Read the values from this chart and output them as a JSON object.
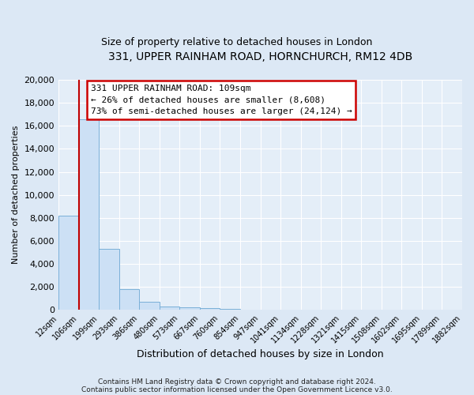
{
  "title1": "331, UPPER RAINHAM ROAD, HORNCHURCH, RM12 4DB",
  "title2": "Size of property relative to detached houses in London",
  "xlabel": "Distribution of detached houses by size in London",
  "ylabel": "Number of detached properties",
  "bar_values": [
    8200,
    16600,
    5300,
    1800,
    700,
    300,
    200,
    150,
    100,
    0,
    0,
    0,
    0,
    0,
    0,
    0,
    0,
    0,
    0,
    0
  ],
  "bin_labels": [
    "12sqm",
    "106sqm",
    "199sqm",
    "293sqm",
    "386sqm",
    "480sqm",
    "573sqm",
    "667sqm",
    "760sqm",
    "854sqm",
    "947sqm",
    "1041sqm",
    "1134sqm",
    "1228sqm",
    "1321sqm",
    "1415sqm",
    "1508sqm",
    "1602sqm",
    "1695sqm",
    "1789sqm",
    "1882sqm"
  ],
  "bar_color": "#cce0f5",
  "bar_edge_color": "#7ab0d8",
  "vline_color": "#c00000",
  "annotation_box_color": "#ffffff",
  "annotation_border_color": "#cc0000",
  "annotation_text1": "331 UPPER RAINHAM ROAD: 109sqm",
  "annotation_text2": "← 26% of detached houses are smaller (8,608)",
  "annotation_text3": "73% of semi-detached houses are larger (24,124) →",
  "ylim": [
    0,
    20000
  ],
  "yticks": [
    0,
    2000,
    4000,
    6000,
    8000,
    10000,
    12000,
    14000,
    16000,
    18000,
    20000
  ],
  "footnote1": "Contains HM Land Registry data © Crown copyright and database right 2024.",
  "footnote2": "Contains public sector information licensed under the Open Government Licence v3.0.",
  "bg_color": "#dce8f5",
  "plot_bg_color": "#e4eef8"
}
